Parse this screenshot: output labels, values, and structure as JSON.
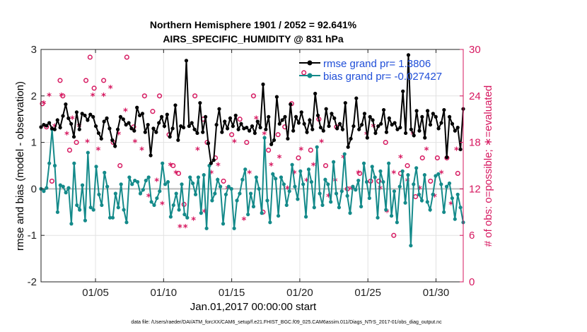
{
  "chart_data": {
    "type": "line",
    "title": "Northern Hemisphere 1901 / 2052 = 92.641%",
    "subtitle": "AIRS_SPECIFIC_HUMIDITY @ 831 hPa",
    "xlabel": "Jan.01,2017 00:00:00 start",
    "ylabel_left": "rmse and bias (model - observation)",
    "ylabel_right": "# of obs: o=possible; ∗=evaluated",
    "footnote": "data file: /Users/raeder/DAI/ATM_forcXX/CAM6_setup/f.e21.FHIST_BGC.f09_025.CAM6assim.011/Diags_NTrS_2017-01/obs_diag_output.nc",
    "x_range_days": [
      1,
      32
    ],
    "ylim_left": [
      -2,
      3
    ],
    "ylim_right": [
      0,
      30
    ],
    "x_tick_values": [
      5,
      10,
      15,
      20,
      25,
      30
    ],
    "x_tick_labels": [
      "01/05",
      "01/10",
      "01/15",
      "01/20",
      "01/25",
      "01/30"
    ],
    "y_left_ticks": [
      "-2",
      "-1",
      "0",
      "1",
      "2",
      "3"
    ],
    "y_right_ticks": [
      "0",
      "6",
      "12",
      "18",
      "24",
      "30"
    ],
    "legend": [
      "rmse grand pr= 1.3806",
      "bias grand pr= -0.027427"
    ],
    "colors": {
      "rmse": "#000000",
      "bias": "#148a8a",
      "obs": "#d6175f",
      "zero_line": "#bbbbbb",
      "grid": "#e2e2e2",
      "legend_text": "#1f4ed8"
    },
    "series": [
      {
        "name": "rmse",
        "values": [
          1.33,
          1.38,
          1.36,
          1.42,
          1.3,
          1.28,
          1.48,
          1.32,
          1.57,
          1.82,
          1.52,
          1.4,
          1.12,
          1.65,
          1.28,
          1.62,
          1.58,
          1.48,
          1.6,
          1.55,
          1.35,
          1.2,
          1.08,
          1.45,
          1.52,
          1.3,
          1.05,
          0.92,
          1.28,
          1.55,
          1.5,
          1.38,
          1.42,
          1.3,
          1.25,
          1.75,
          1.58,
          1.62,
          1.22,
          1.38,
          0.72,
          1.3,
          1.22,
          1.42,
          1.55,
          1.35,
          1.6,
          1.12,
          1.3,
          1.8,
          1.05,
          1.35,
          1.32,
          2.76,
          1.35,
          1.42,
          1.28,
          1.2,
          1.85,
          1.22,
          1.55,
          0.98,
          0.55,
          0.62,
          1.38,
          1.72,
          1.22,
          1.45,
          1.3,
          1.52,
          1.35,
          1.58,
          1.28,
          1.4,
          1.3,
          1.32,
          1.25,
          1.35,
          1.2,
          1.45,
          1.32,
          2.25,
          1.28,
          1.55,
          0.96,
          1.05,
          1.98,
          1.4,
          1.48,
          1.55,
          1.08,
          1.82,
          1.25,
          1.55,
          1.42,
          1.65,
          1.4,
          1.22,
          1.48,
          1.28,
          2.05,
          1.58,
          1.32,
          1.25,
          1.72,
          1.35,
          1.62,
          1.52,
          1.3,
          1.4,
          1.28,
          1.85,
          0.9,
          1.08,
          1.35,
          1.95,
          1.28,
          1.38,
          1.62,
          1.1,
          1.55,
          1.48,
          1.2,
          1.35,
          1.4,
          1.7,
          1.22,
          1.52,
          1.38,
          1.42,
          1.28,
          1.32,
          2.1,
          1.2,
          2.88,
          1.28,
          1.15,
          1.68,
          1.25,
          1.55,
          1.1,
          1.68,
          1.38,
          1.62,
          1.55,
          1.3,
          1.42,
          1.7,
          0.68,
          1.55,
          1.4,
          1.25,
          1.32,
          0.85,
          1.72
        ],
        "color": "#000000"
      },
      {
        "name": "bias",
        "values": [
          0.0,
          -0.05,
          0.02,
          0.55,
          1.28,
          0.5,
          -0.5,
          0.08,
          0.05,
          -0.08,
          0.02,
          -0.75,
          0.55,
          -0.35,
          -0.45,
          0.08,
          -0.68,
          0.78,
          -0.4,
          -0.45,
          0.48,
          -0.12,
          -0.35,
          0.35,
          0.05,
          -0.62,
          -0.62,
          -0.1,
          -0.4,
          0.1,
          -0.45,
          -0.72,
          0.25,
          0.1,
          0.18,
          0.15,
          -0.1,
          -0.02,
          0.18,
          0.25,
          -0.28,
          -0.35,
          -0.2,
          -0.05,
          0.55,
          0.1,
          0.15,
          -0.6,
          -0.35,
          -0.1,
          -0.45,
          0.1,
          -0.55,
          -0.62,
          0.25,
          0.12,
          -0.12,
          0.25,
          -0.52,
          0.3,
          -0.85,
          0.5,
          -0.25,
          -0.1,
          0.2,
          0.05,
          -0.75,
          -0.12,
          0.05,
          0.0,
          -0.85,
          -0.25,
          -0.1,
          0.2,
          0.42,
          -0.55,
          -0.1,
          -0.38,
          0.25,
          0.0,
          -0.52,
          1.1,
          -0.25,
          -0.72,
          0.32,
          0.22,
          -0.58,
          0.25,
          0.1,
          -0.35,
          -0.05,
          0.52,
          0.05,
          -0.22,
          0.38,
          0.1,
          -0.6,
          0.42,
          0.15,
          -0.4,
          0.9,
          -0.1,
          -0.35,
          0.2,
          0.1,
          -0.28,
          0.58,
          -0.1,
          -0.4,
          -0.05,
          0.75,
          -0.15,
          -0.52,
          0.05,
          -0.02,
          0.18,
          -0.38,
          0.55,
          0.15,
          -0.2,
          0.48,
          0.25,
          -0.62,
          0.38,
          0.15,
          -0.45,
          0.55,
          -0.58,
          -0.05,
          -0.72,
          0.05,
          0.38,
          -0.3,
          0.3,
          -1.22,
          0.1,
          0.45,
          -0.12,
          -0.25,
          0.3,
          -0.28,
          -0.45,
          -0.12,
          0.28,
          0.32,
          0.1,
          -0.5,
          0.05,
          0.12,
          -0.2,
          -0.65,
          -0.12,
          -0.4,
          -0.72
        ],
        "color": "#148a8a"
      }
    ],
    "obs_possible": [
      [
        1.1,
        23
      ],
      [
        1.4,
        20
      ],
      [
        1.8,
        13
      ],
      [
        2.6,
        24
      ],
      [
        2.4,
        26
      ],
      [
        3.1,
        17
      ],
      [
        3.6,
        18
      ],
      [
        4.3,
        26
      ],
      [
        4.6,
        29
      ],
      [
        4.9,
        25
      ],
      [
        5.6,
        26
      ],
      [
        6.3,
        18
      ],
      [
        6.8,
        15
      ],
      [
        7.3,
        29
      ],
      [
        7.8,
        20
      ],
      [
        8.6,
        24
      ],
      [
        9.2,
        22
      ],
      [
        9.7,
        24
      ],
      [
        10.4,
        19
      ],
      [
        10.7,
        15
      ],
      [
        11.1,
        14
      ],
      [
        11.5,
        10
      ],
      [
        12.3,
        24
      ],
      [
        12.9,
        21
      ],
      [
        13.2,
        18
      ],
      [
        13.8,
        16
      ],
      [
        14.4,
        13
      ],
      [
        15.0,
        19
      ],
      [
        15.6,
        21
      ],
      [
        16.1,
        18
      ],
      [
        16.6,
        24
      ],
      [
        17.3,
        9
      ],
      [
        17.7,
        17
      ],
      [
        18.4,
        19
      ],
      [
        18.9,
        20
      ],
      [
        19.4,
        23
      ],
      [
        19.9,
        16
      ],
      [
        20.3,
        27
      ],
      [
        20.8,
        17
      ],
      [
        21.4,
        21
      ],
      [
        21.9,
        15
      ],
      [
        22.7,
        20
      ],
      [
        23.5,
        12
      ],
      [
        24.4,
        14
      ],
      [
        25.2,
        13
      ],
      [
        25.8,
        13
      ],
      [
        26.3,
        18
      ],
      [
        26.9,
        6
      ],
      [
        27.4,
        14
      ],
      [
        27.9,
        15
      ],
      [
        28.5,
        11
      ],
      [
        29.0,
        16
      ],
      [
        29.6,
        13
      ],
      [
        30.1,
        16
      ],
      [
        30.8,
        16
      ],
      [
        31.6,
        14
      ]
    ],
    "obs_evaluated": [
      [
        1.2,
        23
      ],
      [
        1.6,
        24
      ],
      [
        2.0,
        20
      ],
      [
        2.5,
        24
      ],
      [
        2.9,
        19
      ],
      [
        3.3,
        21
      ],
      [
        3.8,
        20
      ],
      [
        4.4,
        18
      ],
      [
        4.8,
        24
      ],
      [
        5.2,
        17
      ],
      [
        5.6,
        24
      ],
      [
        6.1,
        25
      ],
      [
        6.7,
        19
      ],
      [
        7.2,
        22
      ],
      [
        7.9,
        18
      ],
      [
        8.4,
        17
      ],
      [
        8.9,
        11
      ],
      [
        9.5,
        13
      ],
      [
        9.9,
        10
      ],
      [
        10.5,
        15
      ],
      [
        10.9,
        14
      ],
      [
        11.2,
        7
      ],
      [
        11.6,
        7
      ],
      [
        12.2,
        8
      ],
      [
        12.5,
        17
      ],
      [
        13.0,
        9
      ],
      [
        13.5,
        14
      ],
      [
        14.0,
        15
      ],
      [
        14.7,
        12
      ],
      [
        15.2,
        18
      ],
      [
        15.9,
        8
      ],
      [
        16.3,
        14
      ],
      [
        16.8,
        21
      ],
      [
        17.4,
        19
      ],
      [
        17.9,
        15
      ],
      [
        18.5,
        16
      ],
      [
        19.1,
        12
      ],
      [
        19.6,
        14
      ],
      [
        20.1,
        17
      ],
      [
        20.5,
        13
      ],
      [
        21.0,
        15
      ],
      [
        21.6,
        18
      ],
      [
        22.1,
        11
      ],
      [
        22.6,
        13
      ],
      [
        23.2,
        16
      ],
      [
        23.8,
        12
      ],
      [
        24.3,
        14
      ],
      [
        24.9,
        19
      ],
      [
        25.4,
        20
      ],
      [
        25.9,
        12
      ],
      [
        26.4,
        9
      ],
      [
        26.9,
        14
      ],
      [
        27.4,
        16
      ],
      [
        27.9,
        13
      ],
      [
        28.3,
        19
      ],
      [
        28.8,
        12
      ],
      [
        29.3,
        17
      ],
      [
        29.9,
        11
      ],
      [
        30.4,
        14
      ],
      [
        31.1,
        10
      ],
      [
        31.5,
        17
      ]
    ]
  }
}
